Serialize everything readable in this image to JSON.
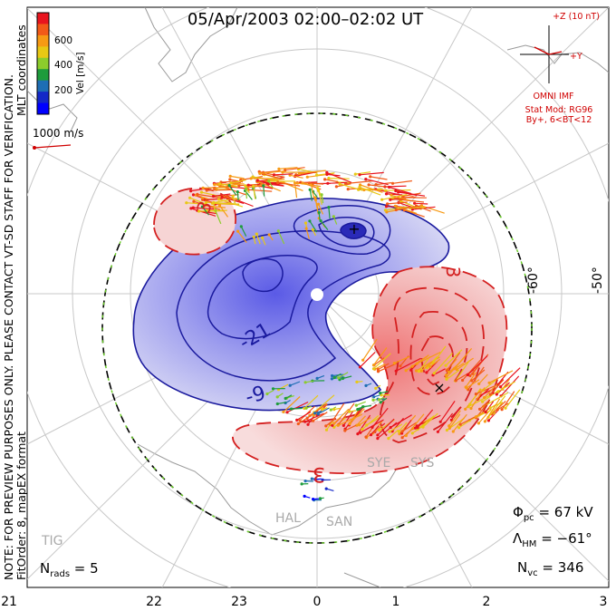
{
  "title": "05/Apr/2003 02:00–02:02 UT",
  "note_side": "NOTE: FOR PREVIEW PURPOSES ONLY. PLEASE CONTACT VT-SD STAFF FOR VERIFICATION.",
  "fit_order": "FitOrder: 8, mapEX format",
  "mlt_label": "MLT coordinates",
  "colorbar": {
    "label": "Vel [m/s]",
    "ticks": [
      "600",
      "400",
      "200"
    ],
    "colors": [
      "#e8141e",
      "#f25a18",
      "#f79a14",
      "#e8c814",
      "#8ccc2c",
      "#1e9c3c",
      "#1e6eb4",
      "#1428c8",
      "#0000ff"
    ]
  },
  "vector_scale": "1000 m/s",
  "imf": {
    "z_label": "+Z (10 nT)",
    "y_label": "+Y",
    "omni": "OMNI IMF",
    "stat_mod": "Stat Mod: RG96",
    "by_bt": "By+, 6<BT<12"
  },
  "lat_labels": [
    "-60°",
    "-50°"
  ],
  "mlt_hours": [
    "21",
    "22",
    "23",
    "0",
    "1",
    "2",
    "3"
  ],
  "contours": {
    "labels_positive": [
      "3",
      "3",
      "3"
    ],
    "labels_negative": [
      "-9",
      "-21"
    ],
    "positive_color": "#d42020",
    "negative_color": "#1a1a9e"
  },
  "stations": [
    "SYE",
    "SYS",
    "HAL",
    "SAN",
    "TIG"
  ],
  "stats": {
    "phi_pc": "Φ",
    "phi_sub": "pc",
    "phi_val": " = 67 kV",
    "lambda": "Λ",
    "lambda_sub": "HM",
    "lambda_val": " = −61°",
    "nvc": "N",
    "nvc_sub": "vc",
    "nvc_val": " = 346",
    "nrads": "N",
    "nrads_sub": "rads",
    "nrads_val": " = 5"
  }
}
